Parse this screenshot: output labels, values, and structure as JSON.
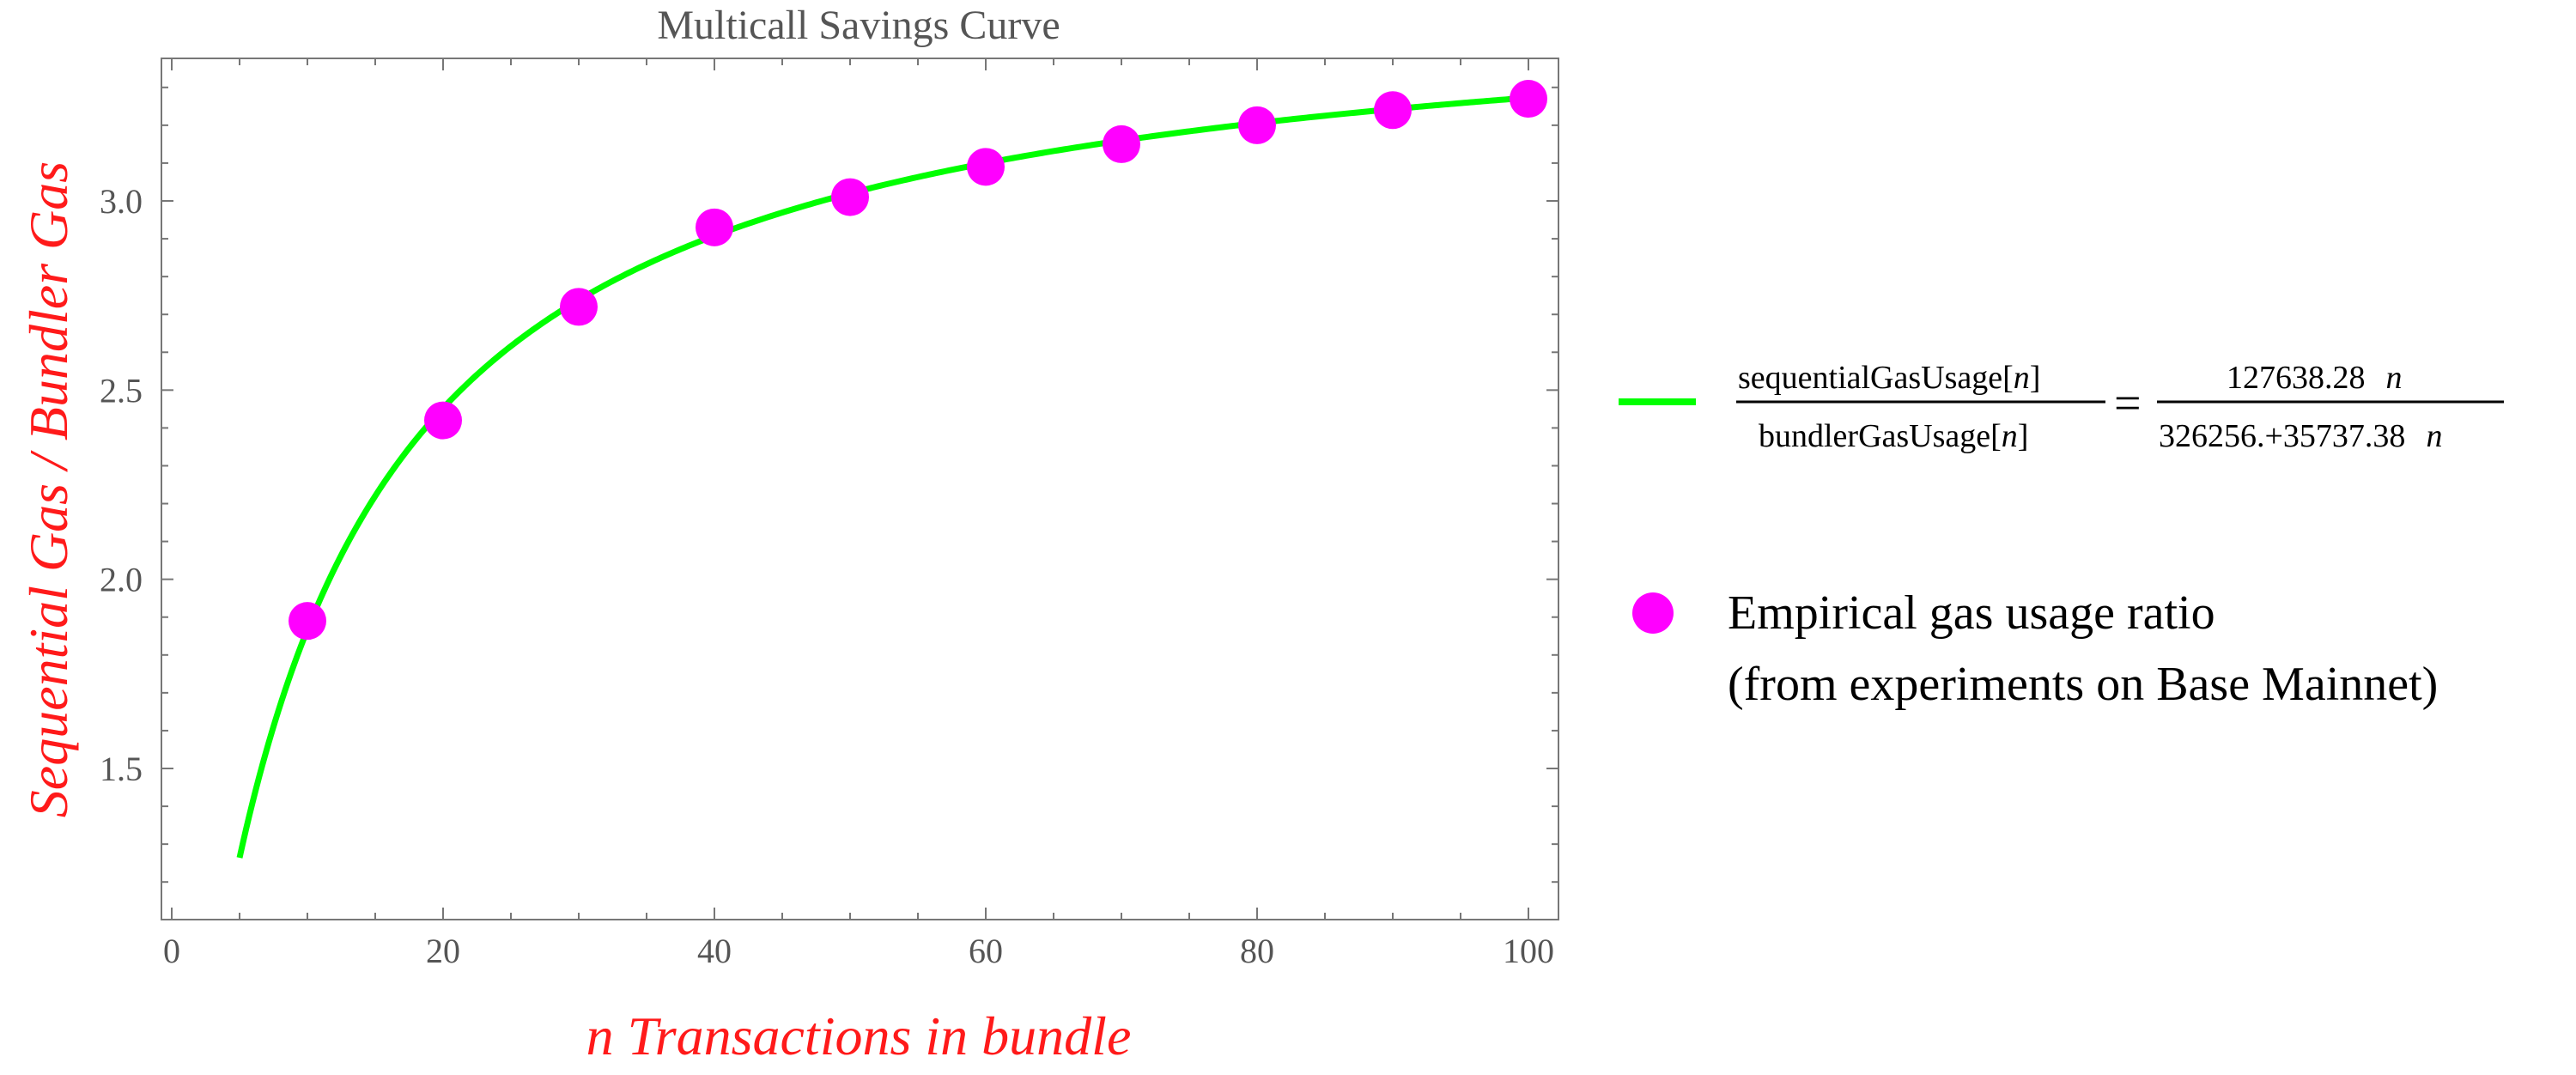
{
  "chart_data": {
    "type": "scatter",
    "title": "Multicall Savings Curve",
    "xlabel": "n Transactions in bundle",
    "ylabel": "Sequential Gas / Bundler Gas",
    "xlim": [
      0,
      100
    ],
    "ylim": [
      1.1,
      3.4
    ],
    "x_ticks": [
      0,
      20,
      40,
      60,
      80,
      100
    ],
    "y_ticks": [
      1.5,
      2.0,
      2.5,
      3.0
    ],
    "x_tick_labels": [
      "0",
      "20",
      "40",
      "60",
      "80",
      "100"
    ],
    "y_tick_labels": [
      "1.5",
      "2.0",
      "2.5",
      "3.0"
    ],
    "grid": false,
    "legend_position": "right",
    "series": [
      {
        "kind": "line",
        "color": "#00ff00",
        "function": {
          "numerator_coef": 127638.28,
          "denominator_const": 326256,
          "denominator_coef": 35737.38
        },
        "x_range": [
          5,
          100
        ]
      },
      {
        "kind": "scatter",
        "name": "Empirical gas usage ratio",
        "color": "#ff00ff",
        "x": [
          10,
          20,
          30,
          40,
          50,
          60,
          70,
          80,
          90,
          100
        ],
        "y": [
          1.89,
          2.42,
          2.72,
          2.93,
          3.01,
          3.09,
          3.15,
          3.2,
          3.24,
          3.27
        ]
      }
    ],
    "legend": {
      "line_formula": {
        "lhs_numerator": "sequentialGasUsage[",
        "lhs_denominator": "bundlerGasUsage[",
        "var": "n",
        "bracket_close": "]",
        "equals": "=",
        "rhs_numerator": "127638.28",
        "rhs_denominator": "326256.+35737.38"
      },
      "scatter_line1": "Empirical gas usage ratio",
      "scatter_line2": "(from experiments on Base Mainnet)"
    }
  }
}
